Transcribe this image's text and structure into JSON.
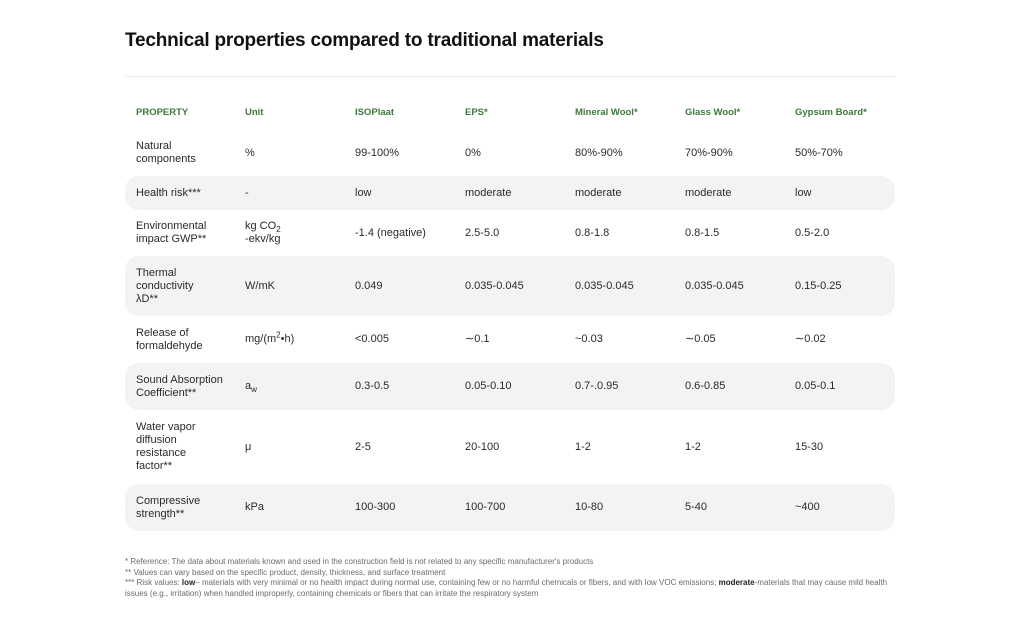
{
  "title": "Technical properties compared to traditional materials",
  "columns": [
    "PROPERTY",
    "Unit",
    "ISOPlaat",
    "EPS*",
    "Mineral Wool*",
    "Glass Wool*",
    "Gypsum Board*"
  ],
  "rows": [
    {
      "property": "Natural components",
      "unit": "%",
      "values": [
        "99-100%",
        "0%",
        "80%-90%",
        "70%-90%",
        "50%-70%"
      ]
    },
    {
      "property": "Health risk***",
      "unit": "-",
      "values": [
        "low",
        "moderate",
        "moderate",
        "moderate",
        "low"
      ]
    },
    {
      "property": "Environmental impact GWP**",
      "unit_main": "kg CO",
      "unit_sub": "2",
      "unit_line2": "-ekv/kg",
      "values": [
        "-1.4 (negative)",
        "2.5-5.0",
        "0.8-1.8",
        "0.8-1.5",
        "0.5-2.0"
      ]
    },
    {
      "property": "Thermal conductivity λD**",
      "unit": "W/mK",
      "values": [
        "0.049",
        "0.035-0.045",
        "0.035-0.045",
        "0.035-0.045",
        "0.15-0.25"
      ]
    },
    {
      "property": "Release of formaldehyde",
      "unit_main": "mg/(m",
      "unit_sup": "2",
      "unit_rest": "•h)",
      "values": [
        "<0.005",
        "∼0.1",
        "~0.03",
        "∼0.05",
        "∼0.02"
      ]
    },
    {
      "property": "Sound Absorption Coefficient**",
      "unit_main": "a",
      "unit_sub": "w",
      "values": [
        "0.3-0.5",
        "0.05-0.10",
        "0.7-.0.95",
        "0.6-0.85",
        "0.05-0.1"
      ]
    },
    {
      "property": "Water vapor diffusion resistance factor**",
      "unit": "μ",
      "values": [
        "2-5",
        "20-100",
        "1-2",
        "1-2",
        "15-30"
      ]
    },
    {
      "property": "Compressive strength**",
      "unit": "kPa",
      "values": [
        "100-300",
        "100-700",
        "10-80",
        "5-40",
        "~400"
      ]
    }
  ],
  "footnotes": {
    "ref": "* Reference: The data about materials known and used in the construction field is not related to any specific manufacturer's products",
    "values": "** Values can vary based on the specific product, density, thickness, and surface treatment",
    "risk_prefix": "*** Risk values: ",
    "risk_low_word": "low",
    "risk_low_text": "– materials with very minimal or no health impact during normal use, containing few or no harmful chemicals or fibers, and with low VOC emissions; ",
    "risk_mod_word": "moderate",
    "risk_mod_text": "-materials that may cause mild health issues (e.g., irritation) when handled improperly, containing chemicals or fibers that can irritate the respiratory system"
  }
}
